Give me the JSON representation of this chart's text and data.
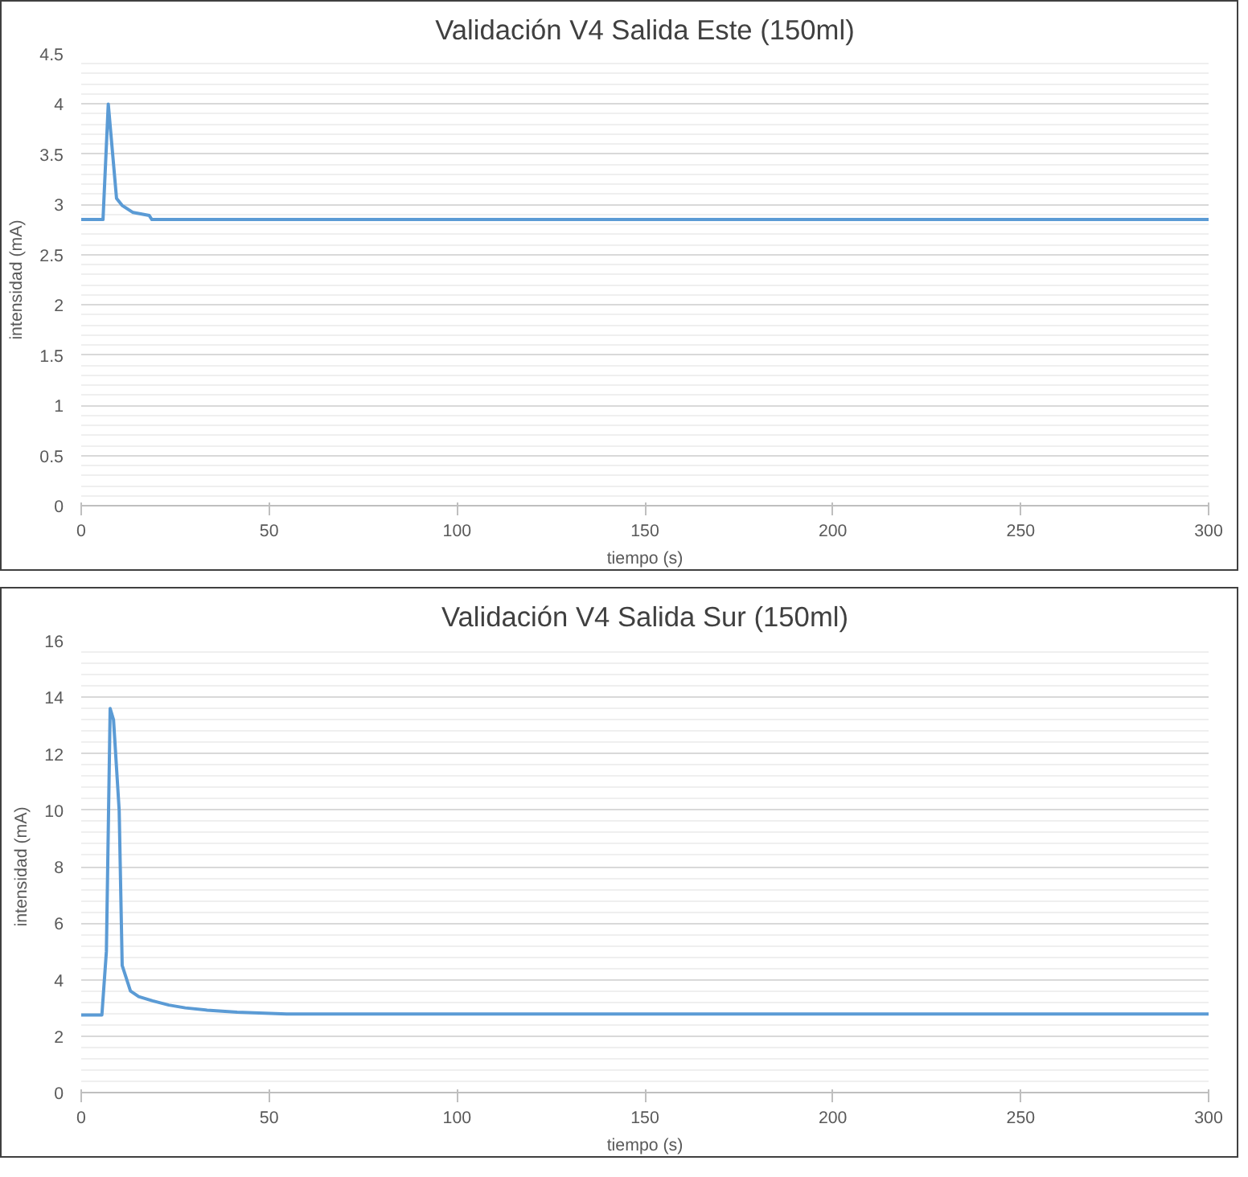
{
  "chart_data": [
    {
      "type": "line",
      "title": "Validación V4 Salida Este (150ml)",
      "xlabel": "tiempo (s)",
      "ylabel": "intensidad (mA)",
      "series": [
        {
          "color": "#5b9bd5",
          "x": [
            0,
            5.8,
            7.2,
            9.4,
            10.9,
            13.8,
            18.1,
            18.8,
            300
          ],
          "values": [
            2.85,
            2.85,
            4.0,
            3.06,
            2.99,
            2.92,
            2.89,
            2.85,
            2.85
          ]
        }
      ],
      "xlim": [
        0,
        300
      ],
      "xticks": [
        0,
        50,
        100,
        150,
        200,
        250,
        300
      ],
      "ylim": [
        0,
        4.5
      ],
      "yticks": [
        0,
        0.5,
        1,
        1.5,
        2,
        2.5,
        3,
        3.5,
        4,
        4.5
      ],
      "grid": "y"
    },
    {
      "type": "line",
      "title": "Validación V4 Salida Sur (150ml)",
      "xlabel": "tiempo (s)",
      "ylabel": "intensidad (mA)",
      "series": [
        {
          "color": "#5b9bd5",
          "x": [
            0,
            5.5,
            6.7,
            7.7,
            8.6,
            10.1,
            10.9,
            13.1,
            15.3,
            19,
            23.3,
            27.7,
            33.5,
            41.5,
            54.7,
            300
          ],
          "values": [
            2.75,
            2.75,
            5.0,
            13.6,
            13.2,
            10.0,
            4.5,
            3.6,
            3.4,
            3.25,
            3.1,
            3.0,
            2.92,
            2.85,
            2.78,
            2.78
          ]
        }
      ],
      "xlim": [
        0,
        300
      ],
      "xticks": [
        0,
        50,
        100,
        150,
        200,
        250,
        300
      ],
      "ylim": [
        0,
        16
      ],
      "yticks": [
        0,
        2,
        4,
        6,
        8,
        10,
        12,
        14,
        16
      ],
      "grid": "y"
    }
  ]
}
